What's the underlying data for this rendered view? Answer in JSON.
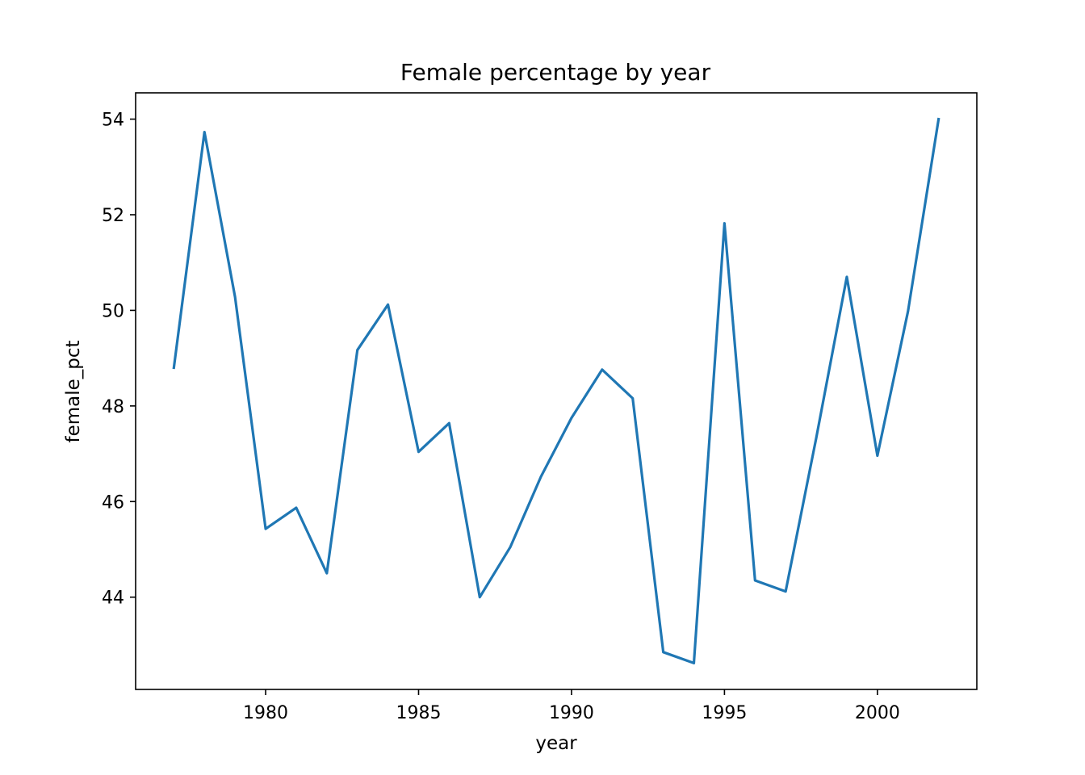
{
  "chart_data": {
    "type": "line",
    "title": "Female percentage by year",
    "xlabel": "year",
    "ylabel": "female_pct",
    "xlim": [
      1975.75,
      2003.25
    ],
    "ylim": [
      42.07,
      54.55
    ],
    "x_ticks": [
      "1980",
      "1985",
      "1990",
      "1995",
      "2000"
    ],
    "x_tick_values": [
      1980,
      1985,
      1990,
      1995,
      2000
    ],
    "y_ticks": [
      "44",
      "46",
      "48",
      "50",
      "52",
      "54"
    ],
    "y_tick_values": [
      44,
      46,
      48,
      50,
      52,
      54
    ],
    "grid": false,
    "series": [
      {
        "color": "#1f77b4",
        "x": [
          1977,
          1978,
          1979,
          1980,
          1981,
          1982,
          1983,
          1984,
          1985,
          1986,
          1987,
          1988,
          1989,
          1990,
          1991,
          1992,
          1993,
          1994,
          1995,
          1996,
          1997,
          1998,
          1999,
          2000,
          2001,
          2002
        ],
        "y": [
          48.8,
          53.73,
          50.28,
          45.43,
          45.87,
          44.5,
          49.17,
          50.12,
          47.04,
          47.64,
          44.0,
          45.05,
          46.52,
          47.75,
          48.76,
          48.16,
          42.85,
          42.62,
          51.82,
          44.35,
          44.12,
          47.33,
          50.7,
          46.96,
          49.98,
          54.0
        ]
      }
    ]
  }
}
